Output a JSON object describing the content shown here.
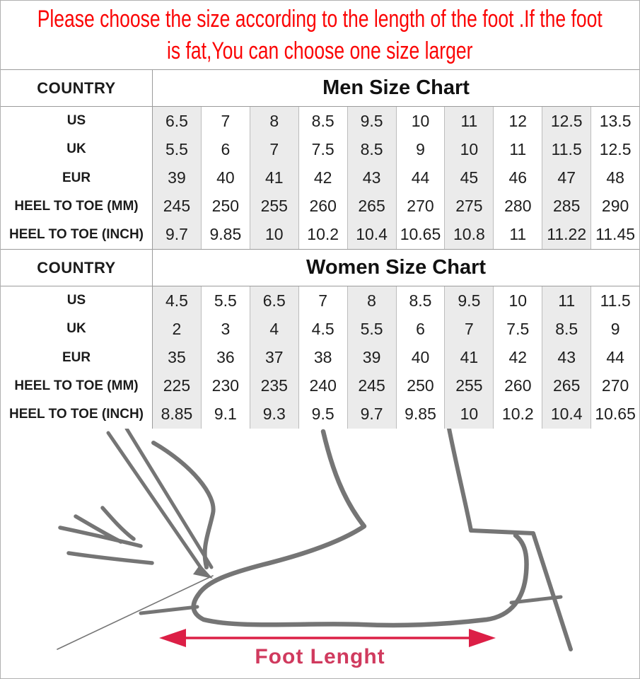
{
  "notice": {
    "lines": [
      "Please choose the size according to the length of the foot .If the foot",
      "is fat,You can choose one size larger"
    ],
    "color": "#fb0505"
  },
  "men": {
    "country_label": "COUNTRY",
    "title": "Men Size Chart",
    "rows": [
      {
        "label": "US",
        "values": [
          "6.5",
          "7",
          "8",
          "8.5",
          "9.5",
          "10",
          "11",
          "12",
          "12.5",
          "13.5"
        ]
      },
      {
        "label": "UK",
        "values": [
          "5.5",
          "6",
          "7",
          "7.5",
          "8.5",
          "9",
          "10",
          "11",
          "11.5",
          "12.5"
        ]
      },
      {
        "label": "EUR",
        "values": [
          "39",
          "40",
          "41",
          "42",
          "43",
          "44",
          "45",
          "46",
          "47",
          "48"
        ]
      },
      {
        "label": "HEEL TO TOE (MM)",
        "values": [
          "245",
          "250",
          "255",
          "260",
          "265",
          "270",
          "275",
          "280",
          "285",
          "290"
        ]
      },
      {
        "label": "HEEL TO TOE (INCH)",
        "values": [
          "9.7",
          "9.85",
          "10",
          "10.2",
          "10.4",
          "10.65",
          "10.8",
          "11",
          "11.22",
          "11.45"
        ]
      }
    ]
  },
  "women": {
    "country_label": "COUNTRY",
    "title": "Women Size Chart",
    "rows": [
      {
        "label": "US",
        "values": [
          "4.5",
          "5.5",
          "6.5",
          "7",
          "8",
          "8.5",
          "9.5",
          "10",
          "11",
          "11.5"
        ]
      },
      {
        "label": "UK",
        "values": [
          "2",
          "3",
          "4",
          "4.5",
          "5.5",
          "6",
          "7",
          "7.5",
          "8.5",
          "9"
        ]
      },
      {
        "label": "EUR",
        "values": [
          "35",
          "36",
          "37",
          "38",
          "39",
          "40",
          "41",
          "42",
          "43",
          "44"
        ]
      },
      {
        "label": "HEEL TO TOE (MM)",
        "values": [
          "225",
          "230",
          "235",
          "240",
          "245",
          "250",
          "255",
          "260",
          "265",
          "270"
        ]
      },
      {
        "label": "HEEL TO TOE (INCH)",
        "values": [
          "8.85",
          "9.1",
          "9.3",
          "9.5",
          "9.7",
          "9.85",
          "10",
          "10.2",
          "10.4",
          "10.65"
        ]
      }
    ]
  },
  "figure": {
    "caption": "Foot Lenght",
    "arrow_color": "#dc1f46",
    "caption_color": "#d03a5e",
    "sketch_color": "#757575",
    "drawing": "foot-measurement-sketch"
  },
  "table_style": {
    "stripe_color": "#ebebeb",
    "border_color": "#9b9b9b"
  }
}
